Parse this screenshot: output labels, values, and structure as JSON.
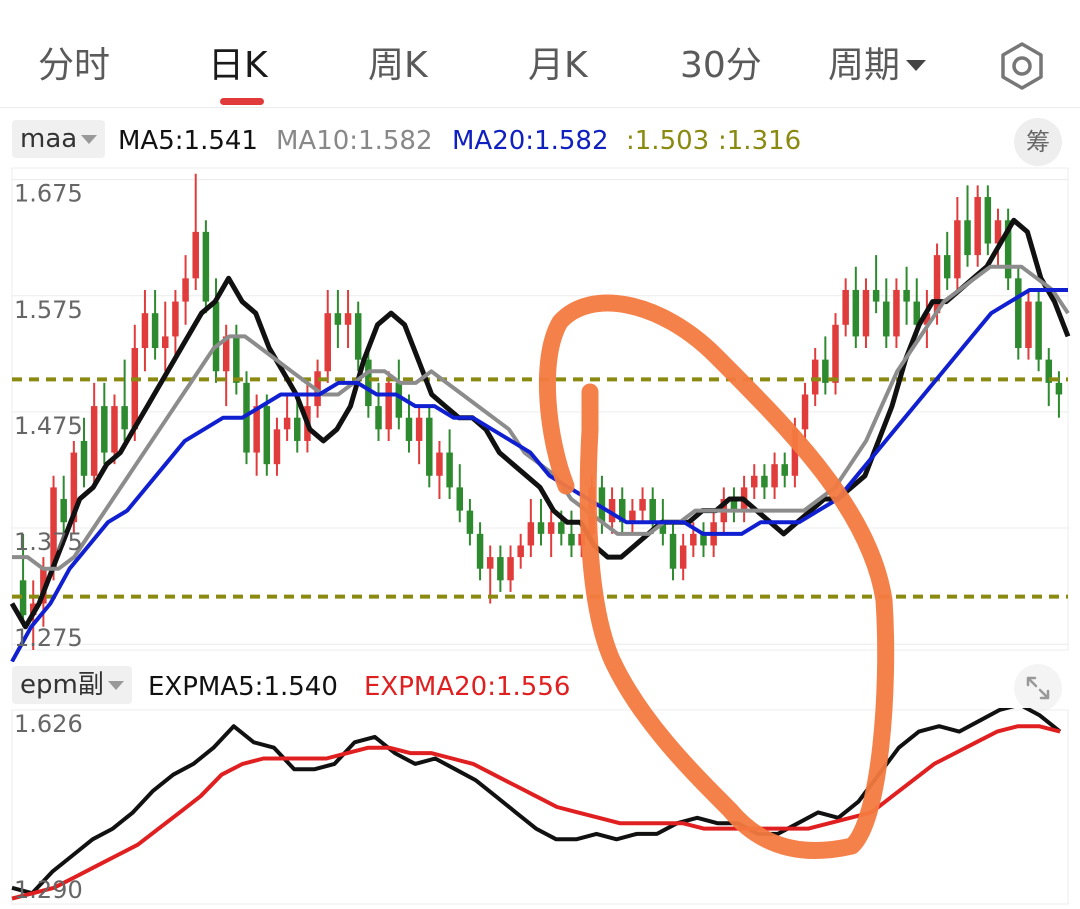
{
  "tabs": [
    {
      "label": "分时",
      "active": false
    },
    {
      "label": "日K",
      "active": true
    },
    {
      "label": "周K",
      "active": false
    },
    {
      "label": "月K",
      "active": false
    },
    {
      "label": "30分",
      "active": false
    },
    {
      "label": "周期",
      "active": false,
      "dropdown": true
    }
  ],
  "settings_icon": "hexagon-gear-icon",
  "main_indicator": {
    "selector_label": "maa",
    "legend": [
      {
        "name": "MA5",
        "text": "MA5:1.541",
        "color": "#111111"
      },
      {
        "name": "MA10",
        "text": "MA10:1.582",
        "color": "#888888"
      },
      {
        "name": "MA20",
        "text": "MA20:1.582",
        "color": "#1020c0"
      },
      {
        "name": "",
        "text": ":1.503",
        "color": "#8a8a10"
      },
      {
        "name": "",
        "text": ":1.316",
        "color": "#8a8a10"
      }
    ],
    "chip_label": "筹"
  },
  "sub_indicator": {
    "selector_label": "epm副",
    "legend": [
      {
        "name": "EXPMA5",
        "text": "EXPMA5:1.540",
        "color": "#111111"
      },
      {
        "name": "EXPMA20",
        "text": "EXPMA20:1.556",
        "color": "#e02020"
      }
    ],
    "expand_icon": "expand-arrows-icon"
  },
  "colors": {
    "up": "#e03c3c",
    "down": "#2e8a2e",
    "ma5": "#111111",
    "ma10": "#8c8c8c",
    "ma20": "#1020d0",
    "level": "#8a8a10",
    "expma5": "#111111",
    "expma20": "#e02020",
    "annotation": "#f47a40"
  },
  "chart_data": [
    {
      "type": "candlestick",
      "title": "",
      "y_ticks": [
        "1.675",
        "1.575",
        "1.475",
        "1.375",
        "1.275"
      ],
      "ylim": [
        1.27,
        1.685
      ],
      "levels": [
        1.503,
        1.316
      ],
      "candles": [
        [
          1.33,
          1.37,
          1.29,
          1.3
        ],
        [
          1.3,
          1.33,
          1.27,
          1.31
        ],
        [
          1.31,
          1.35,
          1.29,
          1.34
        ],
        [
          1.34,
          1.42,
          1.33,
          1.41
        ],
        [
          1.4,
          1.42,
          1.36,
          1.38
        ],
        [
          1.38,
          1.45,
          1.37,
          1.44
        ],
        [
          1.45,
          1.47,
          1.41,
          1.42
        ],
        [
          1.42,
          1.5,
          1.41,
          1.48
        ],
        [
          1.48,
          1.5,
          1.43,
          1.44
        ],
        [
          1.44,
          1.49,
          1.43,
          1.48
        ],
        [
          1.48,
          1.52,
          1.45,
          1.46
        ],
        [
          1.46,
          1.55,
          1.45,
          1.53
        ],
        [
          1.53,
          1.58,
          1.51,
          1.56
        ],
        [
          1.56,
          1.58,
          1.52,
          1.53
        ],
        [
          1.53,
          1.57,
          1.51,
          1.54
        ],
        [
          1.54,
          1.58,
          1.52,
          1.57
        ],
        [
          1.57,
          1.61,
          1.55,
          1.59
        ],
        [
          1.59,
          1.68,
          1.58,
          1.63
        ],
        [
          1.63,
          1.64,
          1.56,
          1.57
        ],
        [
          1.57,
          1.59,
          1.5,
          1.51
        ],
        [
          1.51,
          1.55,
          1.48,
          1.54
        ],
        [
          1.54,
          1.55,
          1.49,
          1.5
        ],
        [
          1.5,
          1.51,
          1.43,
          1.44
        ],
        [
          1.44,
          1.49,
          1.42,
          1.48
        ],
        [
          1.48,
          1.49,
          1.42,
          1.43
        ],
        [
          1.43,
          1.47,
          1.42,
          1.46
        ],
        [
          1.46,
          1.49,
          1.45,
          1.47
        ],
        [
          1.47,
          1.49,
          1.44,
          1.45
        ],
        [
          1.45,
          1.5,
          1.44,
          1.48
        ],
        [
          1.48,
          1.52,
          1.47,
          1.51
        ],
        [
          1.51,
          1.58,
          1.5,
          1.56
        ],
        [
          1.56,
          1.58,
          1.53,
          1.55
        ],
        [
          1.55,
          1.58,
          1.53,
          1.56
        ],
        [
          1.56,
          1.57,
          1.51,
          1.52
        ],
        [
          1.52,
          1.53,
          1.47,
          1.48
        ],
        [
          1.48,
          1.5,
          1.45,
          1.46
        ],
        [
          1.46,
          1.51,
          1.45,
          1.5
        ],
        [
          1.5,
          1.52,
          1.46,
          1.47
        ],
        [
          1.47,
          1.49,
          1.44,
          1.45
        ],
        [
          1.45,
          1.48,
          1.43,
          1.47
        ],
        [
          1.47,
          1.48,
          1.41,
          1.42
        ],
        [
          1.42,
          1.45,
          1.4,
          1.44
        ],
        [
          1.44,
          1.46,
          1.4,
          1.41
        ],
        [
          1.41,
          1.43,
          1.38,
          1.39
        ],
        [
          1.39,
          1.4,
          1.36,
          1.37
        ],
        [
          1.37,
          1.38,
          1.33,
          1.34
        ],
        [
          1.34,
          1.36,
          1.31,
          1.35
        ],
        [
          1.35,
          1.36,
          1.32,
          1.33
        ],
        [
          1.33,
          1.36,
          1.32,
          1.35
        ],
        [
          1.35,
          1.37,
          1.34,
          1.36
        ],
        [
          1.36,
          1.4,
          1.35,
          1.38
        ],
        [
          1.38,
          1.4,
          1.36,
          1.37
        ],
        [
          1.37,
          1.39,
          1.35,
          1.38
        ],
        [
          1.38,
          1.39,
          1.36,
          1.37
        ],
        [
          1.37,
          1.39,
          1.35,
          1.36
        ],
        [
          1.36,
          1.38,
          1.35,
          1.37
        ],
        [
          1.37,
          1.42,
          1.36,
          1.41
        ],
        [
          1.41,
          1.42,
          1.37,
          1.38
        ],
        [
          1.38,
          1.41,
          1.37,
          1.4
        ],
        [
          1.4,
          1.41,
          1.37,
          1.38
        ],
        [
          1.38,
          1.4,
          1.37,
          1.39
        ],
        [
          1.39,
          1.41,
          1.38,
          1.4
        ],
        [
          1.4,
          1.41,
          1.37,
          1.38
        ],
        [
          1.38,
          1.4,
          1.36,
          1.37
        ],
        [
          1.37,
          1.38,
          1.33,
          1.34
        ],
        [
          1.34,
          1.37,
          1.33,
          1.36
        ],
        [
          1.36,
          1.38,
          1.35,
          1.37
        ],
        [
          1.37,
          1.38,
          1.35,
          1.36
        ],
        [
          1.36,
          1.39,
          1.35,
          1.38
        ],
        [
          1.38,
          1.41,
          1.37,
          1.4
        ],
        [
          1.4,
          1.41,
          1.38,
          1.39
        ],
        [
          1.39,
          1.42,
          1.38,
          1.41
        ],
        [
          1.41,
          1.43,
          1.4,
          1.42
        ],
        [
          1.42,
          1.43,
          1.4,
          1.41
        ],
        [
          1.41,
          1.44,
          1.4,
          1.43
        ],
        [
          1.43,
          1.44,
          1.41,
          1.42
        ],
        [
          1.42,
          1.47,
          1.41,
          1.46
        ],
        [
          1.46,
          1.5,
          1.45,
          1.49
        ],
        [
          1.49,
          1.53,
          1.48,
          1.52
        ],
        [
          1.52,
          1.54,
          1.49,
          1.5
        ],
        [
          1.5,
          1.56,
          1.49,
          1.55
        ],
        [
          1.55,
          1.59,
          1.54,
          1.58
        ],
        [
          1.58,
          1.6,
          1.53,
          1.54
        ],
        [
          1.54,
          1.59,
          1.53,
          1.58
        ],
        [
          1.58,
          1.61,
          1.56,
          1.57
        ],
        [
          1.57,
          1.59,
          1.53,
          1.54
        ],
        [
          1.54,
          1.59,
          1.53,
          1.58
        ],
        [
          1.58,
          1.6,
          1.55,
          1.57
        ],
        [
          1.57,
          1.59,
          1.54,
          1.55
        ],
        [
          1.55,
          1.58,
          1.53,
          1.56
        ],
        [
          1.56,
          1.62,
          1.55,
          1.61
        ],
        [
          1.61,
          1.63,
          1.58,
          1.59
        ],
        [
          1.59,
          1.66,
          1.58,
          1.64
        ],
        [
          1.64,
          1.67,
          1.6,
          1.61
        ],
        [
          1.61,
          1.67,
          1.6,
          1.66
        ],
        [
          1.66,
          1.67,
          1.61,
          1.62
        ],
        [
          1.62,
          1.65,
          1.6,
          1.64
        ],
        [
          1.64,
          1.65,
          1.58,
          1.59
        ],
        [
          1.59,
          1.6,
          1.52,
          1.53
        ],
        [
          1.53,
          1.58,
          1.52,
          1.57
        ],
        [
          1.57,
          1.58,
          1.51,
          1.52
        ],
        [
          1.52,
          1.53,
          1.48,
          1.5
        ],
        [
          1.5,
          1.51,
          1.47,
          1.49
        ]
      ],
      "series": [
        {
          "name": "MA5",
          "values": [
            1.31,
            1.29,
            1.31,
            1.34,
            1.37,
            1.4,
            1.41,
            1.43,
            1.44,
            1.46,
            1.48,
            1.5,
            1.52,
            1.54,
            1.56,
            1.57,
            1.59,
            1.57,
            1.56,
            1.53,
            1.51,
            1.49,
            1.46,
            1.45,
            1.46,
            1.48,
            1.52,
            1.55,
            1.56,
            1.55,
            1.52,
            1.49,
            1.48,
            1.47,
            1.47,
            1.46,
            1.44,
            1.43,
            1.42,
            1.41,
            1.39,
            1.38,
            1.38,
            1.36,
            1.35,
            1.35,
            1.36,
            1.37,
            1.38,
            1.38,
            1.38,
            1.39,
            1.39,
            1.4,
            1.4,
            1.39,
            1.38,
            1.37,
            1.38,
            1.39,
            1.4,
            1.4,
            1.41,
            1.42,
            1.45,
            1.48,
            1.52,
            1.55,
            1.57,
            1.57,
            1.58,
            1.59,
            1.6,
            1.62,
            1.64,
            1.63,
            1.59,
            1.57,
            1.54
          ]
        },
        {
          "name": "MA10",
          "values": [
            1.35,
            1.35,
            1.34,
            1.34,
            1.35,
            1.37,
            1.39,
            1.41,
            1.43,
            1.45,
            1.47,
            1.49,
            1.51,
            1.53,
            1.54,
            1.54,
            1.53,
            1.52,
            1.51,
            1.5,
            1.49,
            1.49,
            1.5,
            1.51,
            1.51,
            1.5,
            1.5,
            1.51,
            1.5,
            1.49,
            1.48,
            1.47,
            1.46,
            1.44,
            1.43,
            1.42,
            1.4,
            1.39,
            1.38,
            1.37,
            1.37,
            1.37,
            1.38,
            1.38,
            1.39,
            1.39,
            1.39,
            1.39,
            1.39,
            1.39,
            1.39,
            1.39,
            1.4,
            1.41,
            1.43,
            1.45,
            1.48,
            1.51,
            1.53,
            1.55,
            1.57,
            1.58,
            1.59,
            1.6,
            1.6,
            1.6,
            1.59,
            1.58,
            1.56
          ]
        },
        {
          "name": "MA20",
          "values": [
            1.26,
            1.29,
            1.31,
            1.34,
            1.36,
            1.38,
            1.39,
            1.41,
            1.43,
            1.45,
            1.46,
            1.47,
            1.47,
            1.48,
            1.49,
            1.49,
            1.49,
            1.5,
            1.5,
            1.49,
            1.49,
            1.48,
            1.48,
            1.47,
            1.47,
            1.46,
            1.45,
            1.44,
            1.42,
            1.41,
            1.4,
            1.39,
            1.38,
            1.38,
            1.38,
            1.38,
            1.37,
            1.37,
            1.37,
            1.38,
            1.38,
            1.38,
            1.39,
            1.4,
            1.42,
            1.44,
            1.46,
            1.48,
            1.5,
            1.52,
            1.54,
            1.56,
            1.57,
            1.58,
            1.58,
            1.58
          ]
        }
      ]
    },
    {
      "type": "line",
      "title": "",
      "y_ticks": [
        "1.626",
        "1.290"
      ],
      "ylim": [
        1.28,
        1.64
      ],
      "series": [
        {
          "name": "EXPMA5",
          "values": [
            1.31,
            1.3,
            1.34,
            1.37,
            1.4,
            1.42,
            1.45,
            1.49,
            1.52,
            1.54,
            1.57,
            1.61,
            1.58,
            1.57,
            1.53,
            1.53,
            1.54,
            1.58,
            1.59,
            1.56,
            1.54,
            1.55,
            1.53,
            1.51,
            1.48,
            1.45,
            1.42,
            1.4,
            1.4,
            1.41,
            1.4,
            1.41,
            1.41,
            1.43,
            1.44,
            1.43,
            1.43,
            1.41,
            1.41,
            1.43,
            1.45,
            1.44,
            1.47,
            1.52,
            1.57,
            1.6,
            1.61,
            1.6,
            1.62,
            1.64,
            1.65,
            1.63,
            1.6
          ]
        },
        {
          "name": "EXPMA20",
          "values": [
            1.29,
            1.3,
            1.31,
            1.33,
            1.35,
            1.37,
            1.39,
            1.42,
            1.45,
            1.48,
            1.52,
            1.54,
            1.55,
            1.55,
            1.55,
            1.55,
            1.56,
            1.57,
            1.57,
            1.56,
            1.56,
            1.55,
            1.54,
            1.52,
            1.5,
            1.48,
            1.46,
            1.45,
            1.44,
            1.43,
            1.43,
            1.43,
            1.43,
            1.42,
            1.42,
            1.42,
            1.42,
            1.42,
            1.42,
            1.43,
            1.44,
            1.45,
            1.48,
            1.51,
            1.54,
            1.56,
            1.58,
            1.6,
            1.61,
            1.61,
            1.6
          ]
        }
      ]
    }
  ]
}
